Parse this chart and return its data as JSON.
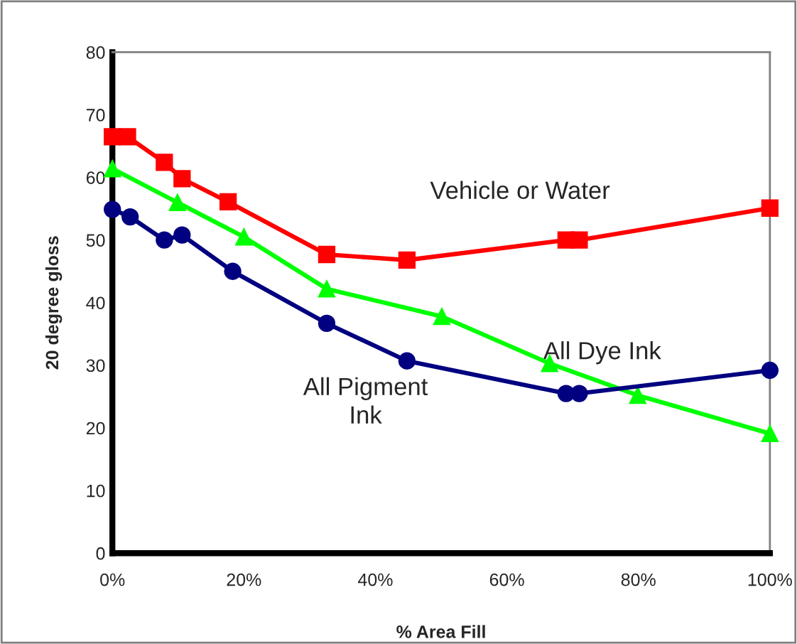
{
  "chart_data": {
    "type": "line",
    "xlabel": "% Area Fill",
    "ylabel": "20 degree gloss",
    "xlim": [
      0,
      100
    ],
    "ylim": [
      0,
      80
    ],
    "xticks": [
      {
        "value": 0,
        "label": "0%"
      },
      {
        "value": 20,
        "label": "20%"
      },
      {
        "value": 40,
        "label": "40%"
      },
      {
        "value": 60,
        "label": "60%"
      },
      {
        "value": 80,
        "label": "80%"
      },
      {
        "value": 100,
        "label": "100%"
      }
    ],
    "yticks": [
      0,
      10,
      20,
      30,
      40,
      50,
      60,
      70,
      80
    ],
    "grid": false,
    "legend": false,
    "line_style": "solid",
    "series": [
      {
        "name": "Vehicle or Water",
        "color": "#ff0000",
        "marker": "square",
        "x": [
          0,
          2.3,
          7.9,
          10.6,
          17.6,
          32.6,
          44.8,
          69,
          71,
          100
        ],
        "values": [
          66.5,
          66.5,
          62.4,
          59.8,
          56.1,
          47.7,
          46.8,
          50.0,
          50.0,
          55.1
        ]
      },
      {
        "name": "All Dye Ink",
        "color": "#00ff00",
        "marker": "triangle",
        "x": [
          0,
          9.9,
          20,
          32.6,
          50.1,
          66.5,
          79.9,
          100
        ],
        "values": [
          61.4,
          56.0,
          50.5,
          42.2,
          37.8,
          30.3,
          25.2,
          19.1
        ]
      },
      {
        "name": "All Pigment\nInk",
        "color": "#000080",
        "marker": "circle",
        "x": [
          0,
          2.7,
          7.9,
          10.6,
          18.3,
          32.6,
          44.8,
          69,
          71,
          100
        ],
        "values": [
          54.9,
          53.7,
          50.0,
          50.8,
          45.0,
          36.7,
          30.7,
          25.5,
          25.5,
          29.2
        ]
      }
    ]
  }
}
